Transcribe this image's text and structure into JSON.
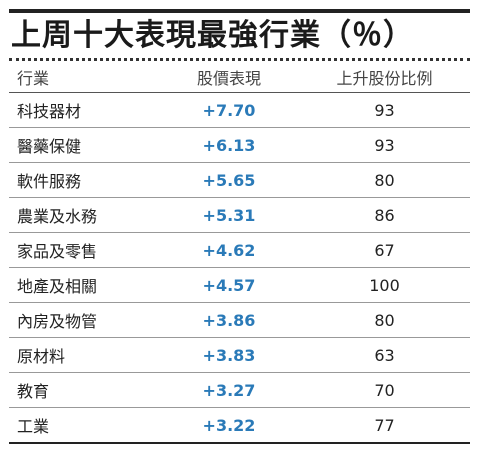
{
  "title": "上周十大表現最強行業（％）",
  "headers": {
    "industry": "行業",
    "performance": "股價表現",
    "ratio": "上升股份比例"
  },
  "rows": [
    {
      "industry": "科技器材",
      "performance": "+7.70",
      "ratio": "93"
    },
    {
      "industry": "醫藥保健",
      "performance": "+6.13",
      "ratio": "93"
    },
    {
      "industry": "軟件服務",
      "performance": "+5.65",
      "ratio": "80"
    },
    {
      "industry": "農業及水務",
      "performance": "+5.31",
      "ratio": "86"
    },
    {
      "industry": "家品及零售",
      "performance": "+4.62",
      "ratio": "67"
    },
    {
      "industry": "地產及相關",
      "performance": "+4.57",
      "ratio": "100"
    },
    {
      "industry": "內房及物管",
      "performance": "+3.86",
      "ratio": "80"
    },
    {
      "industry": "原材料",
      "performance": "+3.83",
      "ratio": "63"
    },
    {
      "industry": "教育",
      "performance": "+3.27",
      "ratio": "70"
    },
    {
      "industry": "工業",
      "performance": "+3.22",
      "ratio": "77"
    }
  ],
  "colors": {
    "performance_text": "#2a7ab8",
    "rule": "#222222"
  }
}
